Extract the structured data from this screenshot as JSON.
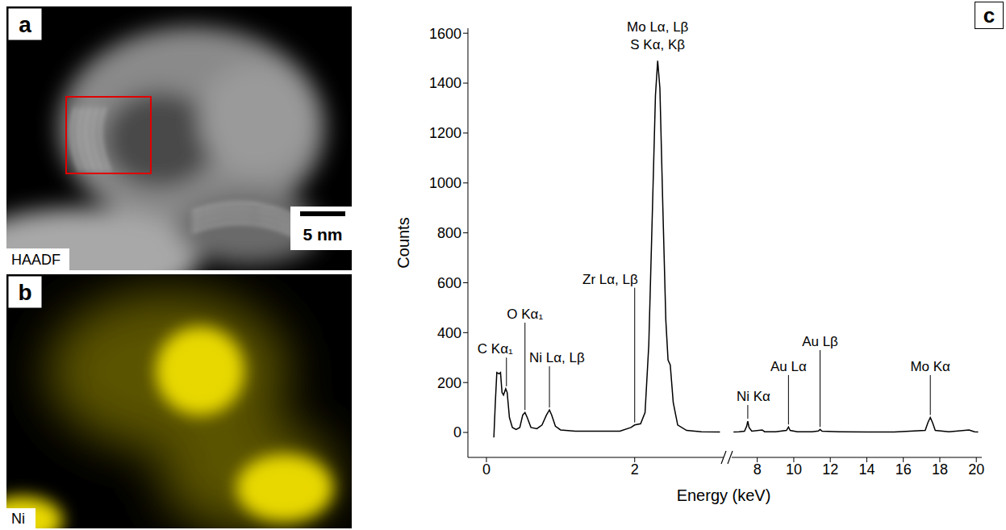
{
  "panels": [
    {
      "letter": "a",
      "label": "HAADF",
      "scale_bar": "5 nm"
    },
    {
      "letter": "b",
      "label": "Ni"
    }
  ],
  "chart_data": {
    "type": "line",
    "panel": "c",
    "xlabel": "Energy (keV)",
    "ylabel": "Counts",
    "color": "#000000",
    "ylim": [
      -100,
      1620
    ],
    "yticks": [
      0,
      200,
      400,
      600,
      800,
      1000,
      1200,
      1400,
      1600
    ],
    "x_segments": [
      {
        "xlim": [
          -0.25,
          3.2
        ],
        "xticks": [
          0,
          2
        ]
      },
      {
        "xlim": [
          6.6,
          20.3
        ],
        "xticks": [
          8,
          10,
          12,
          14,
          16,
          18,
          20
        ]
      }
    ],
    "x": [
      0.1,
      0.12,
      0.14,
      0.17,
      0.19,
      0.21,
      0.23,
      0.26,
      0.28,
      0.31,
      0.35,
      0.4,
      0.45,
      0.49,
      0.52,
      0.55,
      0.6,
      0.68,
      0.75,
      0.81,
      0.85,
      0.88,
      0.93,
      1.0,
      1.2,
      1.5,
      1.8,
      1.95,
      2.0,
      2.08,
      2.14,
      2.19,
      2.24,
      2.28,
      2.31,
      2.34,
      2.38,
      2.42,
      2.45,
      2.48,
      2.52,
      2.58,
      2.7,
      2.9,
      3.15,
      6.7,
      7.0,
      7.3,
      7.42,
      7.48,
      7.55,
      7.7,
      8.27,
      8.4,
      9.0,
      9.6,
      9.71,
      9.8,
      10.2,
      11.0,
      11.35,
      11.44,
      11.55,
      12.5,
      14.0,
      15.5,
      17.2,
      17.35,
      17.48,
      17.6,
      17.75,
      18.5,
      19.6,
      19.9,
      20.1
    ],
    "values": [
      -20,
      120,
      240,
      235,
      240,
      160,
      150,
      175,
      160,
      60,
      20,
      12,
      20,
      70,
      80,
      60,
      20,
      15,
      30,
      70,
      90,
      70,
      25,
      10,
      5,
      5,
      5,
      20,
      30,
      35,
      80,
      350,
      900,
      1350,
      1490,
      1380,
      900,
      450,
      290,
      270,
      120,
      30,
      8,
      3,
      2,
      2,
      3,
      5,
      25,
      45,
      20,
      5,
      10,
      3,
      3,
      8,
      22,
      8,
      3,
      3,
      6,
      12,
      5,
      3,
      2,
      2,
      8,
      40,
      60,
      40,
      8,
      3,
      10,
      3,
      2
    ],
    "annotations": [
      {
        "text": [
          "C Kα₁"
        ],
        "x": 0.27,
        "y": 175
      },
      {
        "text": [
          "O Kα₁"
        ],
        "x": 0.52,
        "y": 80
      },
      {
        "text": [
          "Ni Lα, Lβ"
        ],
        "x": 0.85,
        "y": 90
      },
      {
        "text": [
          "Zr Lα, Lβ"
        ],
        "x": 2.0,
        "y": 30
      },
      {
        "text": [
          "Mo Lα, Lβ",
          "S Kα, Kβ"
        ],
        "x": 2.31,
        "y": 1490
      },
      {
        "text": [
          "Ni Kα"
        ],
        "x": 7.48,
        "y": 45
      },
      {
        "text": [
          "Au Lα"
        ],
        "x": 9.71,
        "y": 22
      },
      {
        "text": [
          "Au Lβ"
        ],
        "x": 11.44,
        "y": 12
      },
      {
        "text": [
          "Mo Kα"
        ],
        "x": 17.48,
        "y": 60
      }
    ]
  }
}
